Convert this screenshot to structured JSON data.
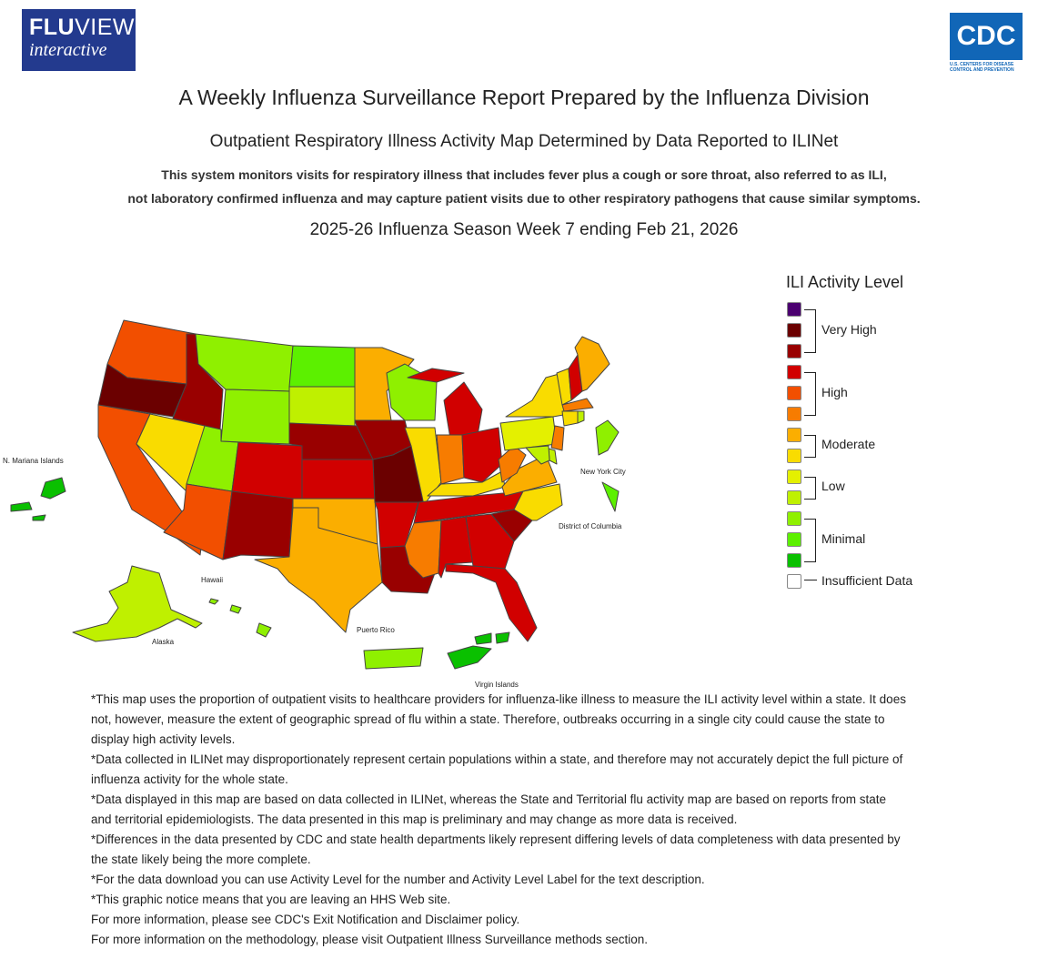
{
  "header": {
    "fluview_logo_line1": "FLU",
    "fluview_logo_line1b": "VIEW",
    "fluview_logo_line2": "interactive",
    "cdc_logo_text": "CDC",
    "cdc_logo_caption": "U.S. CENTERS FOR DISEASE CONTROL AND PREVENTION"
  },
  "titles": {
    "main": "A Weekly Influenza Surveillance Report Prepared by the Influenza Division",
    "sub": "Outpatient Respiratory Illness Activity Map Determined by Data Reported to ILINet",
    "desc_line1": "This system monitors visits for respiratory illness that includes fever plus a cough or sore throat, also referred to as ILI,",
    "desc_line2": "not laboratory confirmed influenza and may capture patient visits due to other respiratory pathogens that cause similar symptoms.",
    "season": "2025-26 Influenza Season Week 7 ending Feb 21, 2026"
  },
  "map_labels": {
    "mariana": "N. Mariana Islands",
    "nyc": "New York City",
    "dc": "District of Columbia",
    "hawaii": "Hawaii",
    "alaska": "Alaska",
    "puerto_rico": "Puerto Rico",
    "virgin_islands": "Virgin Islands"
  },
  "colors": {
    "l13": "#4b0070",
    "l12": "#6b0000",
    "l11": "#990000",
    "l10": "#d10000",
    "l9": "#f24f00",
    "l8": "#f77c00",
    "l7": "#fbae00",
    "l6": "#f9dc00",
    "l5": "#e4f000",
    "l4": "#bff000",
    "l3": "#8ff000",
    "l2": "#5cf000",
    "l1": "#0ac000",
    "insufficient": "#ffffff"
  },
  "legend": {
    "title": "ILI Activity Level",
    "very_high": "Very High",
    "high": "High",
    "moderate": "Moderate",
    "low": "Low",
    "minimal": "Minimal",
    "insufficient": "Insufficient Data"
  },
  "states": [
    {
      "name": "Washington",
      "level": 9
    },
    {
      "name": "Oregon",
      "level": 12
    },
    {
      "name": "California",
      "level": 9
    },
    {
      "name": "Idaho",
      "level": 11
    },
    {
      "name": "Nevada",
      "level": 6
    },
    {
      "name": "Montana",
      "level": 3
    },
    {
      "name": "Wyoming",
      "level": 3
    },
    {
      "name": "Utah",
      "level": 3
    },
    {
      "name": "Arizona",
      "level": 9
    },
    {
      "name": "Colorado",
      "level": 10
    },
    {
      "name": "New Mexico",
      "level": 11
    },
    {
      "name": "North Dakota",
      "level": 2
    },
    {
      "name": "South Dakota",
      "level": 4
    },
    {
      "name": "Nebraska",
      "level": 11
    },
    {
      "name": "Kansas",
      "level": 10
    },
    {
      "name": "Oklahoma",
      "level": 7
    },
    {
      "name": "Texas",
      "level": 7
    },
    {
      "name": "Minnesota",
      "level": 7
    },
    {
      "name": "Iowa",
      "level": 11
    },
    {
      "name": "Missouri",
      "level": 12
    },
    {
      "name": "Arkansas",
      "level": 10
    },
    {
      "name": "Louisiana",
      "level": 11
    },
    {
      "name": "Wisconsin",
      "level": 3
    },
    {
      "name": "Illinois",
      "level": 6
    },
    {
      "name": "Michigan",
      "level": 10
    },
    {
      "name": "Indiana",
      "level": 8
    },
    {
      "name": "Ohio",
      "level": 10
    },
    {
      "name": "Kentucky",
      "level": 6
    },
    {
      "name": "Tennessee",
      "level": 10
    },
    {
      "name": "Mississippi",
      "level": 8
    },
    {
      "name": "Alabama",
      "level": 10
    },
    {
      "name": "Georgia",
      "level": 10
    },
    {
      "name": "Florida",
      "level": 10
    },
    {
      "name": "South Carolina",
      "level": 11
    },
    {
      "name": "North Carolina",
      "level": 6
    },
    {
      "name": "Virginia",
      "level": 7
    },
    {
      "name": "West Virginia",
      "level": 8
    },
    {
      "name": "Pennsylvania",
      "level": 5
    },
    {
      "name": "New York",
      "level": 6
    },
    {
      "name": "Vermont",
      "level": 6
    },
    {
      "name": "New Hampshire",
      "level": 10
    },
    {
      "name": "Maine",
      "level": 7
    },
    {
      "name": "Massachusetts",
      "level": 8
    },
    {
      "name": "Connecticut",
      "level": 6
    },
    {
      "name": "New Jersey",
      "level": 8
    },
    {
      "name": "Delaware",
      "level": 4
    },
    {
      "name": "Maryland",
      "level": 4
    },
    {
      "name": "Rhode Island",
      "level": 4
    },
    {
      "name": "Alaska",
      "level": 4
    },
    {
      "name": "Hawaii",
      "level": 3
    },
    {
      "name": "Puerto Rico",
      "level": 3
    },
    {
      "name": "Virgin Islands",
      "level": 1
    },
    {
      "name": "N. Mariana Islands",
      "level": 1
    },
    {
      "name": "New York City",
      "level": 2
    },
    {
      "name": "District of Columbia",
      "level": 3
    }
  ],
  "notes": [
    "*This map uses the proportion of outpatient visits to healthcare providers for influenza-like illness to measure the ILI activity level within a state. It does not, however, measure the extent of geographic spread of flu within a state. Therefore, outbreaks occurring in a single city could cause the state to display high activity levels.",
    "*Data collected in ILINet may disproportionately represent certain populations within a state, and therefore may not accurately depict the full picture of influenza activity for the whole state.",
    "*Data displayed in this map are based on data collected in ILINet, whereas the State and Territorial flu activity map are based on reports from state and territorial epidemiologists. The data presented in this map is preliminary and may change as more data is received.",
    "*Differences in the data presented by CDC and state health departments likely represent differing levels of data completeness with data presented by the state likely being the more complete.",
    "*For the data download you can use Activity Level for the number and Activity Level Label for the text description.",
    "*This graphic notice means that you are leaving an HHS Web site.",
    "For more information, please see CDC's Exit Notification and Disclaimer policy.",
    "For more information on the methodology, please visit Outpatient Illness Surveillance methods section."
  ]
}
